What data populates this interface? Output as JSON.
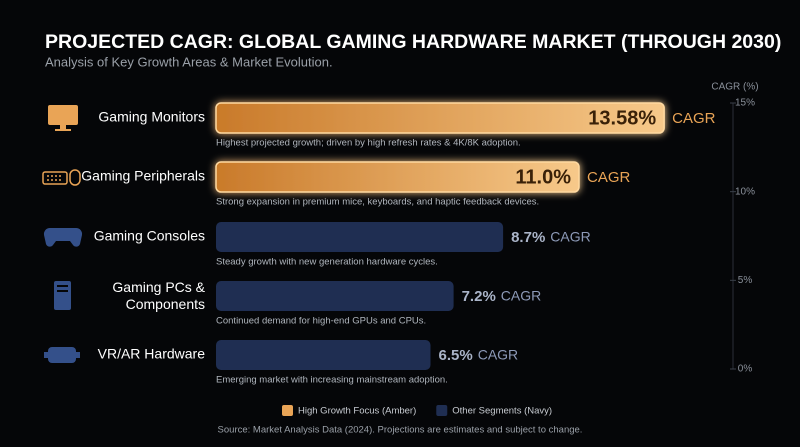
{
  "chart_data": {
    "type": "bar",
    "orientation": "horizontal",
    "title": "PROJECTED CAGR: GLOBAL GAMING HARDWARE MARKET (THROUGH 2030)",
    "subtitle": "Analysis of Key Growth Areas & Market Evolution.",
    "axis_label": "CAGR (%)",
    "value_suffix": "CAGR",
    "categories": [
      "Gaming Monitors",
      "Gaming Peripherals",
      "Gaming Consoles",
      "Gaming PCs & Components",
      "VR/AR Hardware"
    ],
    "annotations": [
      "Highest projected growth; driven by high refresh rates & 4K/8K adoption.",
      "Strong expansion in premium mice, keyboards, and haptic feedback devices.",
      "Steady growth with new generation hardware cycles.",
      "Continued demand for high-end GPUs and CPUs.",
      "Emerging market with increasing mainstream adoption."
    ],
    "series": [
      {
        "name": "High Growth Focus (Amber)",
        "color": "#e9a456",
        "values": [
          13.58,
          11.0,
          null,
          null,
          null
        ],
        "value_labels": [
          "13.58%",
          "11.0%",
          null,
          null,
          null
        ]
      },
      {
        "name": "Other Segments (Navy)",
        "color": "#1f2e52",
        "values": [
          null,
          null,
          8.7,
          7.2,
          6.5
        ],
        "value_labels": [
          null,
          null,
          "8.7%",
          "7.2%",
          "6.5%"
        ]
      }
    ],
    "xlim": [
      0,
      15
    ],
    "xticks": [
      {
        "value": 0,
        "label": "0%"
      },
      {
        "value": 5,
        "label": "5%"
      },
      {
        "value": 10,
        "label": "10%"
      },
      {
        "value": 15,
        "label": "15%"
      }
    ],
    "source": "Source: Market Analysis Data (2024). Projections are estimates and subject to change."
  }
}
